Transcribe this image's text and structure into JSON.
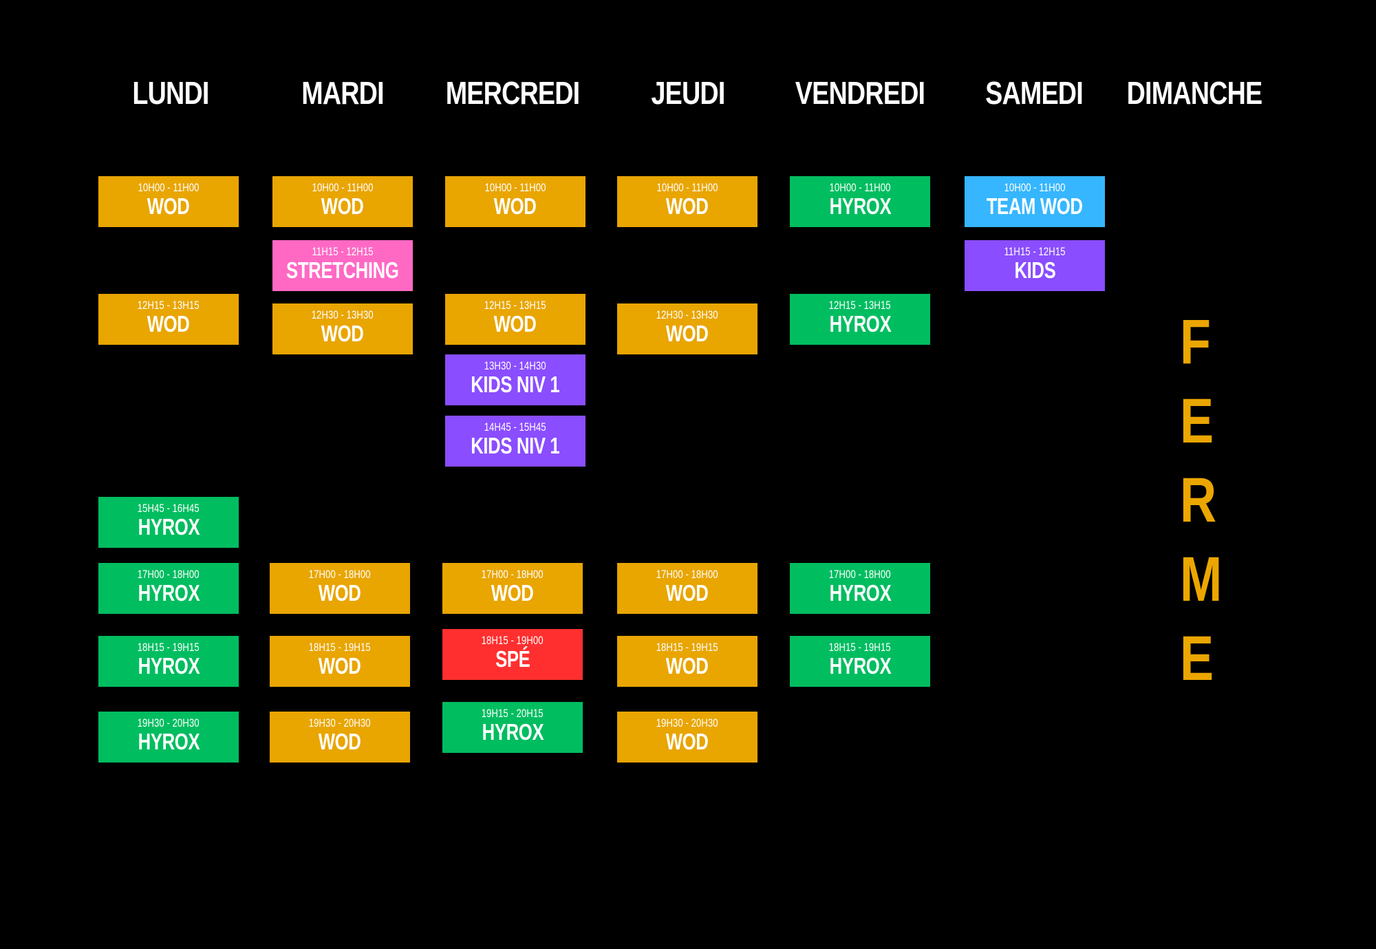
{
  "colors": {
    "background": "#000000",
    "wod": "#e9a500",
    "hyrox": "#00bd60",
    "stretching": "#ff69c4",
    "kids": "#8a4dff",
    "team_wod": "#36b6ff",
    "spe": "#ff2f2f",
    "closed": "#eba600",
    "text": "#ffffff"
  },
  "days": [
    "LUNDI",
    "MARDI",
    "MERCREDI",
    "JEUDI",
    "VENDREDI",
    "SAMEDI",
    "DIMANCHE"
  ],
  "sessions": {
    "lundi": [
      {
        "time": "10H00 - 11H00",
        "name": "WOD",
        "kind": "wod"
      },
      {
        "time": "12H15 - 13H15",
        "name": "WOD",
        "kind": "wod"
      },
      {
        "time": "15H45 - 16H45",
        "name": "HYROX",
        "kind": "hyrox"
      },
      {
        "time": "17H00 - 18H00",
        "name": "HYROX",
        "kind": "hyrox"
      },
      {
        "time": "18H15 - 19H15",
        "name": "HYROX",
        "kind": "hyrox"
      },
      {
        "time": "19H30 - 20H30",
        "name": "HYROX",
        "kind": "hyrox"
      }
    ],
    "mardi": [
      {
        "time": "10H00 - 11H00",
        "name": "WOD",
        "kind": "wod"
      },
      {
        "time": "11H15 - 12H15",
        "name": "STRETCHING",
        "kind": "stretching"
      },
      {
        "time": "12H30 - 13H30",
        "name": "WOD",
        "kind": "wod"
      },
      {
        "time": "17H00 - 18H00",
        "name": "WOD",
        "kind": "wod"
      },
      {
        "time": "18H15 - 19H15",
        "name": "WOD",
        "kind": "wod"
      },
      {
        "time": "19H30 - 20H30",
        "name": "WOD",
        "kind": "wod"
      }
    ],
    "mercredi": [
      {
        "time": "10H00 - 11H00",
        "name": "WOD",
        "kind": "wod"
      },
      {
        "time": "12H15 - 13H15",
        "name": "WOD",
        "kind": "wod"
      },
      {
        "time": "13H30 - 14H30",
        "name": "KIDS NIV 1",
        "kind": "kids"
      },
      {
        "time": "14H45 - 15H45",
        "name": "KIDS NIV 1",
        "kind": "kids"
      },
      {
        "time": "17H00 - 18H00",
        "name": "WOD",
        "kind": "wod"
      },
      {
        "time": "18H15 - 19H00",
        "name": "SPÉ",
        "kind": "spe"
      },
      {
        "time": "19H15 - 20H15",
        "name": "HYROX",
        "kind": "hyrox"
      }
    ],
    "jeudi": [
      {
        "time": "10H00 - 11H00",
        "name": "WOD",
        "kind": "wod"
      },
      {
        "time": "12H30 - 13H30",
        "name": "WOD",
        "kind": "wod"
      },
      {
        "time": "17H00 - 18H00",
        "name": "WOD",
        "kind": "wod"
      },
      {
        "time": "18H15 - 19H15",
        "name": "WOD",
        "kind": "wod"
      },
      {
        "time": "19H30 - 20H30",
        "name": "WOD",
        "kind": "wod"
      }
    ],
    "vendredi": [
      {
        "time": "10H00 - 11H00",
        "name": "HYROX",
        "kind": "hyrox"
      },
      {
        "time": "12H15 - 13H15",
        "name": "HYROX",
        "kind": "hyrox"
      },
      {
        "time": "17H00 - 18H00",
        "name": "HYROX",
        "kind": "hyrox"
      },
      {
        "time": "18H15 - 19H15",
        "name": "HYROX",
        "kind": "hyrox"
      }
    ],
    "samedi": [
      {
        "time": "10H00 - 11H00",
        "name": "TEAM WOD",
        "kind": "team_wod"
      },
      {
        "time": "11H15 - 12H15",
        "name": "KIDS",
        "kind": "kids"
      }
    ]
  },
  "dimanche_closed": [
    "F",
    "E",
    "R",
    "M",
    "E"
  ]
}
